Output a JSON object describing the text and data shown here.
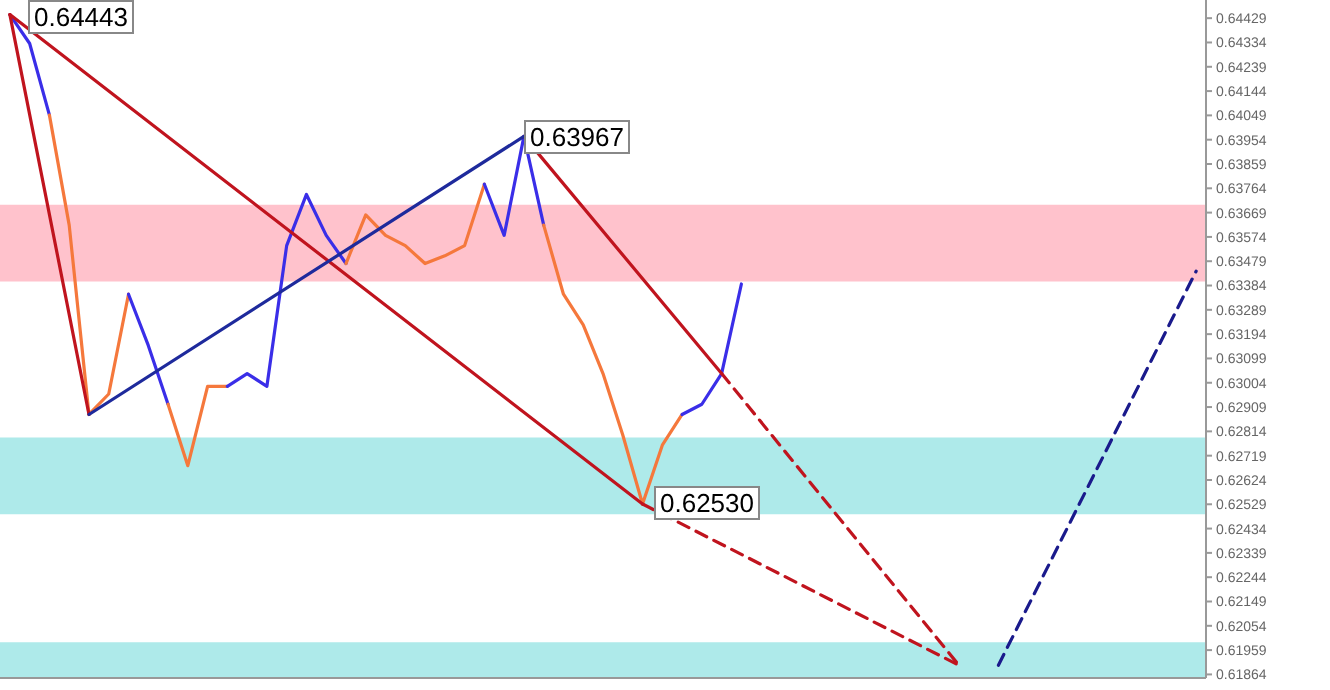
{
  "chart_data": {
    "type": "line",
    "categories": [
      null,
      null,
      null,
      null,
      null,
      null,
      null,
      null,
      null,
      null,
      null,
      null,
      null,
      null,
      null,
      null,
      null,
      null,
      null,
      null,
      null,
      null,
      null,
      null,
      null,
      null,
      null,
      null,
      null,
      null,
      null,
      null,
      null,
      null,
      null,
      null,
      null,
      null,
      null,
      null,
      null,
      null,
      null,
      null,
      null,
      null,
      null,
      null,
      null,
      null,
      null,
      null,
      null,
      null,
      null,
      null,
      null,
      null,
      null,
      null,
      null
    ],
    "series": [
      {
        "color": "#3a2ee8",
        "values": [
          0.64443,
          0.6433,
          0.6405,
          null,
          null,
          null,
          null,
          null,
          null,
          null,
          null,
          null,
          null,
          null,
          null,
          null,
          null,
          null,
          null,
          null,
          null,
          null,
          null,
          null,
          null,
          null,
          null,
          null,
          null,
          null,
          null,
          null,
          null,
          null,
          null,
          null,
          null,
          null,
          null,
          null,
          null,
          null,
          null,
          null,
          null,
          null,
          null,
          null,
          null,
          null,
          null,
          null,
          null,
          null,
          null,
          null,
          null,
          null,
          null,
          null,
          null
        ]
      },
      {
        "color": "#f5783c",
        "values": [
          null,
          null,
          0.6405,
          0.6362,
          0.6288,
          0.6296,
          0.6335,
          null,
          null,
          null,
          null,
          null,
          null,
          null,
          null,
          null,
          null,
          null,
          null,
          null,
          null,
          null,
          null,
          null,
          null,
          null,
          null,
          null,
          null,
          null,
          null,
          null,
          null,
          null,
          null,
          null,
          null,
          null,
          null,
          null,
          null,
          null,
          null,
          null,
          null,
          null,
          null,
          null,
          null,
          null,
          null,
          null,
          null,
          null,
          null,
          null,
          null,
          null,
          null,
          null,
          null
        ]
      },
      {
        "color": "#3a2ee8",
        "values": [
          null,
          null,
          null,
          null,
          null,
          null,
          0.6335,
          0.6315,
          0.6292,
          null,
          null,
          null,
          null,
          null,
          null,
          null,
          null,
          null,
          null,
          null,
          null,
          null,
          null,
          null,
          null,
          null,
          null,
          null,
          null,
          null,
          null,
          null,
          null,
          null,
          null,
          null,
          null,
          null,
          null,
          null,
          null,
          null,
          null,
          null,
          null,
          null,
          null,
          null,
          null,
          null,
          null,
          null,
          null,
          null,
          null,
          null,
          null,
          null,
          null,
          null,
          null
        ]
      },
      {
        "color": "#f5783c",
        "values": [
          null,
          null,
          null,
          null,
          null,
          null,
          null,
          null,
          0.6292,
          0.6268,
          0.6299,
          0.6299,
          null,
          null,
          null,
          null,
          null,
          null,
          null,
          null,
          null,
          null,
          null,
          null,
          null,
          null,
          null,
          null,
          null,
          null,
          null,
          null,
          null,
          null,
          null,
          null,
          null,
          null,
          null,
          null,
          null,
          null,
          null,
          null,
          null,
          null,
          null,
          null,
          null,
          null,
          null,
          null,
          null,
          null,
          null,
          null,
          null,
          null,
          null,
          null,
          null
        ]
      },
      {
        "color": "#3a2ee8",
        "values": [
          null,
          null,
          null,
          null,
          null,
          null,
          null,
          null,
          null,
          null,
          null,
          0.6299,
          0.6304,
          0.6299,
          0.6354,
          0.6374,
          0.6358,
          0.6347,
          null,
          null,
          null,
          null,
          null,
          null,
          null,
          null,
          null,
          null,
          null,
          null,
          null,
          null,
          null,
          null,
          null,
          null,
          null,
          null,
          null,
          null,
          null,
          null,
          null,
          null,
          null,
          null,
          null,
          null,
          null,
          null,
          null,
          null,
          null,
          null,
          null,
          null,
          null,
          null,
          null,
          null,
          null
        ]
      },
      {
        "color": "#f5783c",
        "values": [
          null,
          null,
          null,
          null,
          null,
          null,
          null,
          null,
          null,
          null,
          null,
          null,
          null,
          null,
          null,
          null,
          null,
          0.6347,
          0.6366,
          0.6358,
          0.6354,
          0.6347,
          0.635,
          0.6354,
          0.6378,
          null,
          null,
          null,
          null,
          null,
          null,
          null,
          null,
          null,
          null,
          null,
          null,
          null,
          null,
          null,
          null,
          null,
          null,
          null,
          null,
          null,
          null,
          null,
          null,
          null,
          null,
          null,
          null,
          null,
          null,
          null,
          null,
          null,
          null,
          null,
          null
        ]
      },
      {
        "color": "#3a2ee8",
        "values": [
          null,
          null,
          null,
          null,
          null,
          null,
          null,
          null,
          null,
          null,
          null,
          null,
          null,
          null,
          null,
          null,
          null,
          null,
          null,
          null,
          null,
          null,
          null,
          null,
          0.6378,
          0.6358,
          0.63967,
          0.6362,
          null,
          null,
          null,
          null,
          null,
          null,
          null,
          null,
          null,
          null,
          null,
          null,
          null,
          null,
          null,
          null,
          null,
          null,
          null,
          null,
          null,
          null,
          null,
          null,
          null,
          null,
          null,
          null,
          null,
          null,
          null,
          null,
          null
        ]
      },
      {
        "color": "#f5783c",
        "values": [
          null,
          null,
          null,
          null,
          null,
          null,
          null,
          null,
          null,
          null,
          null,
          null,
          null,
          null,
          null,
          null,
          null,
          null,
          null,
          null,
          null,
          null,
          null,
          null,
          null,
          null,
          null,
          0.6362,
          0.6335,
          0.6323,
          0.6304,
          0.628,
          0.6253,
          0.6276,
          0.6288,
          null,
          null,
          null,
          null,
          null,
          null,
          null,
          null,
          null,
          null,
          null,
          null,
          null,
          null,
          null,
          null,
          null,
          null,
          null,
          null,
          null,
          null,
          null,
          null,
          null,
          null
        ]
      },
      {
        "color": "#3a2ee8",
        "values": [
          null,
          null,
          null,
          null,
          null,
          null,
          null,
          null,
          null,
          null,
          null,
          null,
          null,
          null,
          null,
          null,
          null,
          null,
          null,
          null,
          null,
          null,
          null,
          null,
          null,
          null,
          null,
          null,
          null,
          null,
          null,
          null,
          null,
          null,
          0.6288,
          0.6292,
          0.6304,
          0.6339,
          null,
          null,
          null,
          null,
          null,
          null,
          null,
          null,
          null,
          null,
          null,
          null,
          null,
          null,
          null,
          null,
          null,
          null,
          null,
          null,
          null,
          null,
          null
        ]
      },
      {
        "color": "#c0141e",
        "values": [
          0.64443,
          null,
          null,
          null,
          0.6288,
          null,
          null,
          null,
          null,
          null,
          null,
          null,
          null,
          null,
          null,
          null,
          null,
          null,
          null,
          null,
          null,
          null,
          null,
          null,
          null,
          null,
          null,
          null,
          null,
          null,
          null,
          null,
          null,
          null,
          null,
          null,
          null,
          null,
          null,
          null,
          null,
          null,
          null,
          null,
          null,
          null,
          null,
          null,
          null,
          null,
          null,
          null,
          null,
          null,
          null,
          null,
          null,
          null,
          null,
          null,
          null
        ]
      },
      {
        "color": "#c0141e",
        "values": [
          0.64443,
          null,
          null,
          null,
          null,
          null,
          null,
          null,
          null,
          null,
          null,
          null,
          null,
          null,
          null,
          null,
          null,
          null,
          null,
          null,
          null,
          null,
          null,
          null,
          null,
          null,
          null,
          null,
          null,
          null,
          null,
          null,
          0.6253,
          null,
          null,
          null,
          null,
          null,
          null,
          null,
          null,
          null,
          null,
          null,
          null,
          null,
          null,
          null,
          null,
          null,
          null,
          null,
          null,
          null,
          null,
          null,
          null,
          null,
          null,
          null,
          null
        ]
      },
      {
        "color": "#c0141e",
        "line_style": "dashed",
        "values": [
          null,
          null,
          null,
          null,
          null,
          null,
          null,
          null,
          null,
          null,
          null,
          null,
          null,
          null,
          null,
          null,
          null,
          null,
          null,
          null,
          null,
          null,
          null,
          null,
          null,
          null,
          null,
          null,
          null,
          null,
          null,
          null,
          0.6253,
          null,
          null,
          null,
          null,
          null,
          null,
          null,
          null,
          null,
          null,
          null,
          null,
          null,
          null,
          null,
          0.619,
          null,
          null,
          null,
          null,
          null,
          null,
          null,
          null,
          null,
          null,
          null,
          null
        ]
      },
      {
        "color": "#c0141e",
        "values": [
          null,
          null,
          null,
          null,
          null,
          null,
          null,
          null,
          null,
          null,
          null,
          null,
          null,
          null,
          null,
          null,
          null,
          null,
          null,
          null,
          null,
          null,
          null,
          null,
          null,
          null,
          0.63967,
          null,
          null,
          null,
          null,
          null,
          null,
          null,
          null,
          null,
          0.6304,
          null,
          null,
          null,
          null,
          null,
          null,
          null,
          null,
          null,
          null,
          null,
          null,
          null,
          null,
          null,
          null,
          null,
          null,
          null,
          null,
          null,
          null,
          null,
          null
        ]
      },
      {
        "color": "#c0141e",
        "line_style": "dashed",
        "values": [
          null,
          null,
          null,
          null,
          null,
          null,
          null,
          null,
          null,
          null,
          null,
          null,
          null,
          null,
          null,
          null,
          null,
          null,
          null,
          null,
          null,
          null,
          null,
          null,
          null,
          null,
          null,
          null,
          null,
          null,
          null,
          null,
          null,
          null,
          null,
          null,
          0.6304,
          null,
          null,
          null,
          null,
          null,
          null,
          null,
          null,
          null,
          null,
          null,
          0.619,
          null,
          null,
          null,
          null,
          null,
          null,
          null,
          null,
          null,
          null,
          null,
          null
        ]
      },
      {
        "color": "#1e2a9c",
        "values": [
          null,
          null,
          null,
          null,
          0.6288,
          null,
          null,
          null,
          null,
          null,
          null,
          null,
          null,
          null,
          null,
          null,
          null,
          null,
          null,
          null,
          null,
          null,
          null,
          null,
          null,
          null,
          0.63967,
          null,
          null,
          null,
          null,
          null,
          null,
          null,
          null,
          null,
          null,
          null,
          null,
          null,
          null,
          null,
          null,
          null,
          null,
          null,
          null,
          null,
          null,
          null,
          null,
          null,
          null,
          null,
          null,
          null,
          null,
          null,
          null,
          null,
          null
        ]
      },
      {
        "color": "#1a1a8c",
        "line_style": "dashed",
        "values": [
          null,
          null,
          null,
          null,
          null,
          null,
          null,
          null,
          null,
          null,
          null,
          null,
          null,
          null,
          null,
          null,
          null,
          null,
          null,
          null,
          null,
          null,
          null,
          null,
          null,
          null,
          null,
          null,
          null,
          null,
          null,
          null,
          null,
          null,
          null,
          null,
          null,
          null,
          null,
          null,
          null,
          null,
          null,
          null,
          null,
          null,
          null,
          null,
          null,
          null,
          0.619,
          null,
          null,
          null,
          null,
          null,
          null,
          null,
          null,
          null,
          0.6344
        ]
      }
    ],
    "ylim": [
      0.6185,
      0.645
    ],
    "yticks": [
      0.64429,
      0.64334,
      0.64239,
      0.64144,
      0.64049,
      0.63954,
      0.63859,
      0.63764,
      0.63669,
      0.63574,
      0.63479,
      0.63384,
      0.63289,
      0.63194,
      0.63099,
      0.63004,
      0.62909,
      0.62814,
      0.62719,
      0.62624,
      0.62529,
      0.62434,
      0.62339,
      0.62244,
      0.62149,
      0.62054,
      0.61959,
      0.61864
    ],
    "tick_labels": "y",
    "marker": "none",
    "grid": false,
    "bands": [
      {
        "axis": "y",
        "from": 0.634,
        "to": 0.637,
        "color": "#ffc2cc"
      },
      {
        "axis": "y",
        "from": 0.6249,
        "to": 0.6279,
        "color": "#aeeaea"
      },
      {
        "axis": "y",
        "from": 0.6185,
        "to": 0.6199,
        "color": "#aeeaea"
      }
    ],
    "annotations": [
      "0.64443",
      "0.63967",
      "0.62530"
    ]
  }
}
